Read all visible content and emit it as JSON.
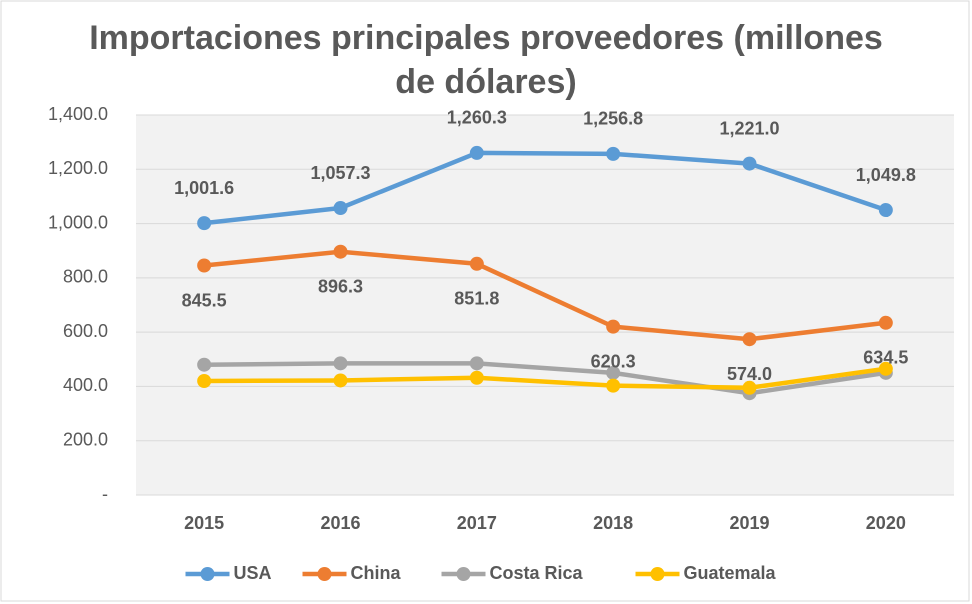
{
  "chart_data": {
    "type": "line",
    "title": "Importaciones principales proveedores (millones de dólares)",
    "categories": [
      "2015",
      "2016",
      "2017",
      "2018",
      "2019",
      "2020"
    ],
    "series": [
      {
        "name": "USA",
        "color": "#5b9bd5",
        "values": [
          1001.6,
          1057.3,
          1260.3,
          1256.8,
          1221.0,
          1049.8
        ],
        "value_labels": [
          "1,001.6",
          "1,057.3",
          "1,260.3",
          "1,256.8",
          "1,221.0",
          "1,049.8"
        ]
      },
      {
        "name": "China",
        "color": "#ed7d31",
        "values": [
          845.5,
          896.3,
          851.8,
          620.3,
          574.0,
          634.5
        ],
        "value_labels": [
          "845.5",
          "896.3",
          "851.8",
          "620.3",
          "574.0",
          "634.5"
        ]
      },
      {
        "name": "Costa Rica",
        "color": "#a5a5a5",
        "values": [
          480,
          485,
          485,
          450,
          375,
          450
        ]
      },
      {
        "name": "Guatemala",
        "color": "#ffc000",
        "values": [
          420,
          422,
          432,
          403,
          395,
          465
        ]
      }
    ],
    "ylim": [
      0,
      1400
    ],
    "yticks": [
      {
        "value": 0,
        "label": "-"
      },
      {
        "value": 200,
        "label": "200.0"
      },
      {
        "value": 400,
        "label": "400.0"
      },
      {
        "value": 600,
        "label": "600.0"
      },
      {
        "value": 800,
        "label": "800.0"
      },
      {
        "value": 1000,
        "label": "1,000.0"
      },
      {
        "value": 1200,
        "label": "1,200.0"
      },
      {
        "value": 1400,
        "label": "1,400.0"
      }
    ],
    "grid": true,
    "legend": "bottom"
  }
}
